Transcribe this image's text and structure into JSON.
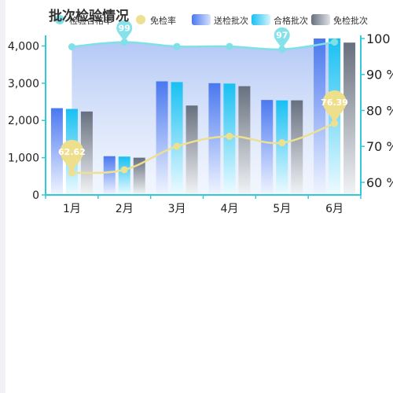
{
  "chart_data": {
    "type": "bar",
    "title": "批次检验情况",
    "categories": [
      "1月",
      "2月",
      "3月",
      "4月",
      "5月",
      "6月"
    ],
    "y_left": {
      "min": 0,
      "max": 4200,
      "ticks": [
        "0",
        "1,000",
        "2,000",
        "3,000",
        "4,000"
      ]
    },
    "y_right": {
      "min": 56.5,
      "max": 100,
      "ticks": [
        "60 %",
        "70 %",
        "80 %",
        "90 %",
        "100 %"
      ]
    },
    "legend": [
      {
        "name": "检验合格率",
        "kind": "line",
        "color": "#7fe0e8"
      },
      {
        "name": "免检率",
        "kind": "line",
        "color": "#ede091"
      },
      {
        "name": "送检批次",
        "kind": "bar",
        "color": "#4f7cf0"
      },
      {
        "name": "合格批次",
        "kind": "bar",
        "color": "#1fc3f2"
      },
      {
        "name": "免检批次",
        "kind": "bar",
        "color": "#6e7786"
      }
    ],
    "bar_series": [
      {
        "name": "送检批次",
        "values": [
          2330,
          1040,
          3050,
          3000,
          2550,
          4200
        ]
      },
      {
        "name": "合格批次",
        "values": [
          2310,
          1030,
          3030,
          2990,
          2540,
          4200
        ]
      },
      {
        "name": "免检批次",
        "values": [
          2240,
          1000,
          2400,
          2920,
          2540,
          4090
        ]
      }
    ],
    "line_series": [
      {
        "name": "检验合格率",
        "values": [
          97.7,
          99,
          97.8,
          97.8,
          97,
          99
        ]
      },
      {
        "name": "免检率",
        "values": [
          62.62,
          63.5,
          70,
          72.8,
          71,
          76.39
        ]
      }
    ],
    "markers": [
      {
        "series": "检验合格率",
        "index": 1,
        "label": "99"
      },
      {
        "series": "检验合格率",
        "index": 4,
        "label": "97"
      },
      {
        "series": "免检率",
        "index": 0,
        "label": "62.62"
      },
      {
        "series": "免检率",
        "index": 5,
        "label": "76.39"
      }
    ],
    "legend_position": "top"
  }
}
